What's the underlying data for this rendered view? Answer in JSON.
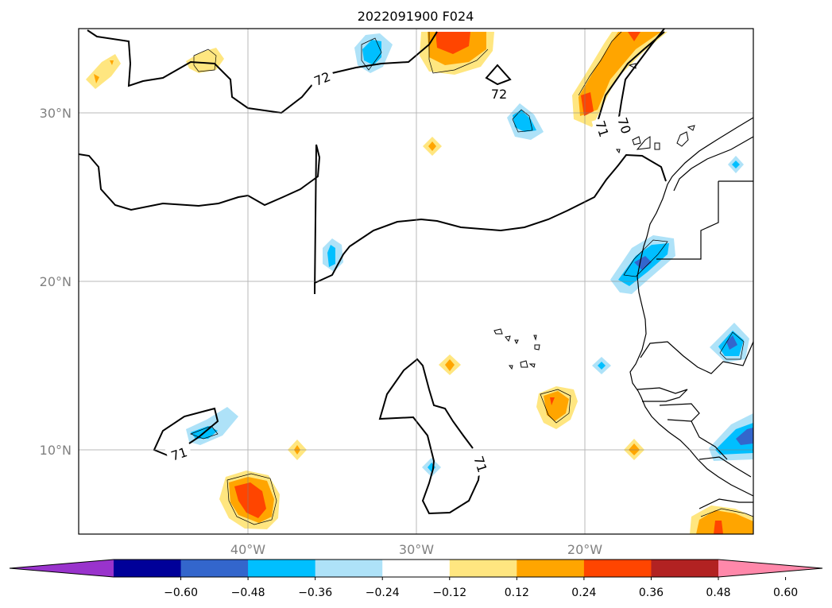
{
  "title": "2022091900 F024",
  "map": {
    "lon_range": [
      -50,
      -10
    ],
    "lat_range": [
      5,
      35
    ],
    "lat_ticks": [
      {
        "value": 30,
        "label": "30°N"
      },
      {
        "value": 20,
        "label": "20°N"
      },
      {
        "value": 10,
        "label": "10°N"
      }
    ],
    "lon_ticks": [
      {
        "value": -40,
        "label": "40°W"
      },
      {
        "value": -30,
        "label": "30°W"
      },
      {
        "value": -20,
        "label": "20°W"
      }
    ],
    "contour_labels": [
      {
        "text": "72",
        "lon": -44.6,
        "lat": 32.0
      },
      {
        "text": "72",
        "lon": -25.1,
        "lat": 31.1
      },
      {
        "text": "71",
        "lon": -19.0,
        "lat": 28.3
      },
      {
        "text": "70",
        "lon": -17.6,
        "lat": 28.9
      },
      {
        "text": "71",
        "lon": -45.8,
        "lat": 9.8
      },
      {
        "text": "71",
        "lon": -26.1,
        "lat": 8.8
      }
    ]
  },
  "colorbar": {
    "levels": [
      "−0.60",
      "−0.48",
      "−0.36",
      "−0.24",
      "−0.12",
      "0.12",
      "0.24",
      "0.36",
      "0.48",
      "0.60"
    ],
    "colors": [
      "#9933cc",
      "#000099",
      "#3366cc",
      "#00bfff",
      "#aee2f8",
      "#ffffff",
      "#ffe680",
      "#ffa500",
      "#ff4500",
      "#b22222",
      "#ff88aa"
    ],
    "extend": "both"
  },
  "anomaly_colors": {
    "yellow": "#ffe680",
    "orange": "#ffa500",
    "red": "#ff4500",
    "lightblue": "#aee2f8",
    "cyan": "#00bfff",
    "blue": "#3366cc"
  }
}
